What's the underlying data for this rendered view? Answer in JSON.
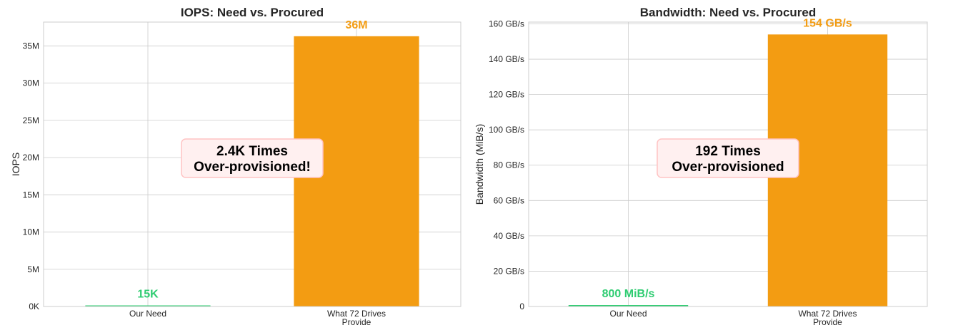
{
  "chart_data": [
    {
      "type": "bar",
      "title": "IOPS: Need vs. Procured",
      "xlabel": "",
      "ylabel": "IOPS",
      "categories": [
        [
          "Our Need"
        ],
        [
          "What 72 Drives",
          "Provide"
        ]
      ],
      "values": [
        15000,
        36300000
      ],
      "value_labels": [
        "15K",
        "36M"
      ],
      "bar_colors": [
        "#2ecc71",
        "#f39c12"
      ],
      "ylim": [
        0,
        38200000
      ],
      "yticks": [
        0,
        5000000,
        10000000,
        15000000,
        20000000,
        25000000,
        30000000,
        35000000
      ],
      "ytick_labels": [
        "0K",
        "5M",
        "10M",
        "15M",
        "20M",
        "25M",
        "30M",
        "35M"
      ],
      "annotation": [
        "2.4K Times",
        "Over-provisioned!"
      ],
      "grid": true
    },
    {
      "type": "bar",
      "title": "Bandwidth: Need vs. Procured",
      "xlabel": "",
      "ylabel": "Bandwidth (MiB/s)",
      "categories": [
        [
          "Our Need"
        ],
        [
          "What 72 Drives",
          "Provide"
        ]
      ],
      "values": [
        800,
        154000
      ],
      "value_labels": [
        "800 MiB/s",
        "154 GB/s"
      ],
      "bar_colors": [
        "#2ecc71",
        "#f39c12"
      ],
      "ylim": [
        0,
        161000
      ],
      "yticks": [
        0,
        20000,
        40000,
        60000,
        80000,
        100000,
        120000,
        140000,
        160000
      ],
      "ytick_labels": [
        "0",
        "20 GB/s",
        "40 GB/s",
        "60 GB/s",
        "80 GB/s",
        "100 GB/s",
        "120 GB/s",
        "140 GB/s",
        "160 GB/s"
      ],
      "annotation": [
        "192 Times",
        "Over-provisioned"
      ],
      "grid": true
    }
  ],
  "colors": {
    "need": "#2ecc71",
    "procured": "#f39c12",
    "annotation_fill": "#fff0f0",
    "annotation_border": "#ffc4c4"
  }
}
